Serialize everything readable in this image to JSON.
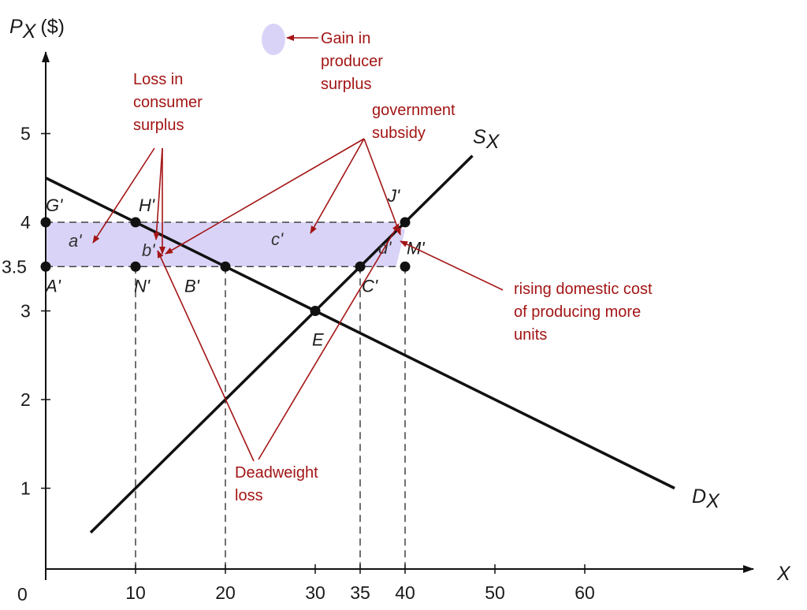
{
  "chart_data": {
    "type": "line",
    "xlabel": "X",
    "ylabel": "P",
    "ylabel_sub": "X",
    "ylabel_unit": "($)",
    "origin_label": "0",
    "xlim": [
      0,
      70
    ],
    "ylim": [
      0,
      5.6
    ],
    "x_ticks": [
      {
        "value": 10,
        "label": "10"
      },
      {
        "value": 20,
        "label": "20"
      },
      {
        "value": 30,
        "label": "30"
      },
      {
        "value": 35,
        "label": "35"
      },
      {
        "value": 40,
        "label": "40"
      },
      {
        "value": 50,
        "label": "50"
      },
      {
        "value": 60,
        "label": "60"
      }
    ],
    "y_ticks": [
      {
        "value": 1,
        "label": "1"
      },
      {
        "value": 2,
        "label": "2"
      },
      {
        "value": 3,
        "label": "3"
      },
      {
        "value": 3.5,
        "label": "3.5"
      },
      {
        "value": 4,
        "label": "4"
      },
      {
        "value": 5,
        "label": "5"
      }
    ],
    "series": [
      {
        "name": "S",
        "sub": "X",
        "color": "#111111",
        "x": [
          5,
          47.5
        ],
        "y": [
          0.5,
          4.75
        ]
      },
      {
        "name": "D",
        "sub": "X",
        "color": "#111111",
        "x": [
          0,
          70
        ],
        "y": [
          4.5,
          1.0
        ]
      }
    ],
    "points": [
      {
        "label": "G'",
        "x": 0,
        "y": 4
      },
      {
        "label": "H'",
        "x": 10,
        "y": 4
      },
      {
        "label": "J'",
        "x": 40,
        "y": 4
      },
      {
        "label": "A'",
        "x": 0,
        "y": 3.5
      },
      {
        "label": "N'",
        "x": 10,
        "y": 3.5
      },
      {
        "label": "B'",
        "x": 20,
        "y": 3.5
      },
      {
        "label": "C'",
        "x": 35,
        "y": 3.5
      },
      {
        "label": "M'",
        "x": 40,
        "y": 3.5
      },
      {
        "label": "E",
        "x": 30,
        "y": 3
      }
    ],
    "regions": [
      {
        "label": "a'"
      },
      {
        "label": "b'"
      },
      {
        "label": "c'"
      },
      {
        "label": "d'"
      }
    ],
    "shading_color": "#d9d4f7",
    "annotation_color": "#a31515",
    "annotations": {
      "producer_surplus": [
        "Gain in",
        "producer",
        "surplus"
      ],
      "consumer_surplus": [
        "Loss in",
        "consumer",
        "surplus"
      ],
      "subsidy": [
        "government",
        "subsidy"
      ],
      "deadweight": [
        "Deadweight",
        "loss"
      ],
      "rising_cost": [
        "rising domestic cost",
        "of producing more",
        "units"
      ]
    }
  }
}
